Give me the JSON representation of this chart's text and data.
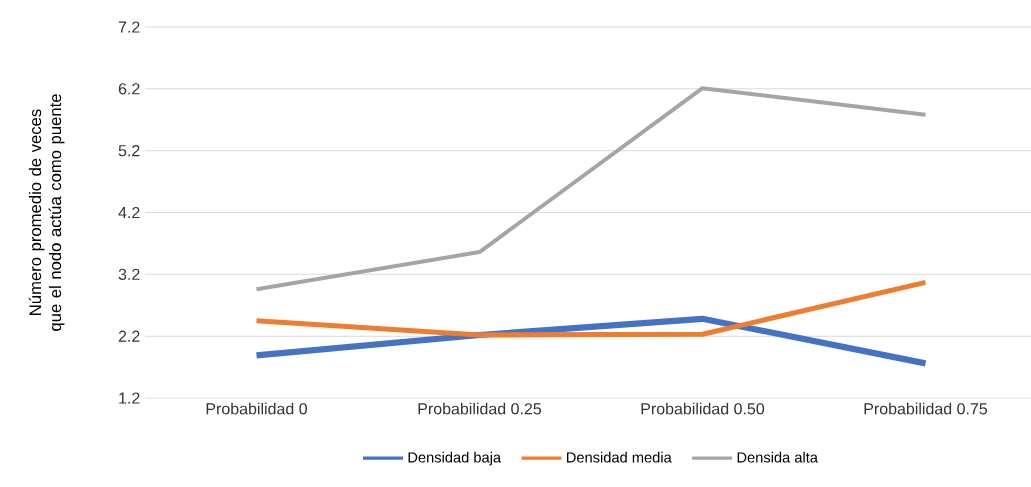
{
  "chart_data": {
    "type": "line",
    "ylabel": "Número promedio de veces que el nodo actúa como puente",
    "categories": [
      "Probabilidad 0",
      "Probabilidad 0.25",
      "Probabilidad 0.50",
      "Probabilidad 0.75"
    ],
    "series": [
      {
        "name": "Densidad baja",
        "color": "#4472c4",
        "values": [
          1.89,
          2.22,
          2.48,
          1.76
        ]
      },
      {
        "name": "Densidad media",
        "color": "#ed7d31",
        "values": [
          2.45,
          2.22,
          2.23,
          3.07
        ]
      },
      {
        "name": "Densida alta",
        "color": "#a5a5a5",
        "values": [
          2.96,
          3.56,
          6.21,
          5.78
        ]
      }
    ],
    "ylim": [
      1.2,
      7.2
    ],
    "yticks": [
      1.2,
      2.2,
      3.2,
      4.2,
      5.2,
      6.2,
      7.2
    ],
    "grid": "y",
    "legend": "bottom",
    "marker": "none",
    "line_style": "solid"
  }
}
